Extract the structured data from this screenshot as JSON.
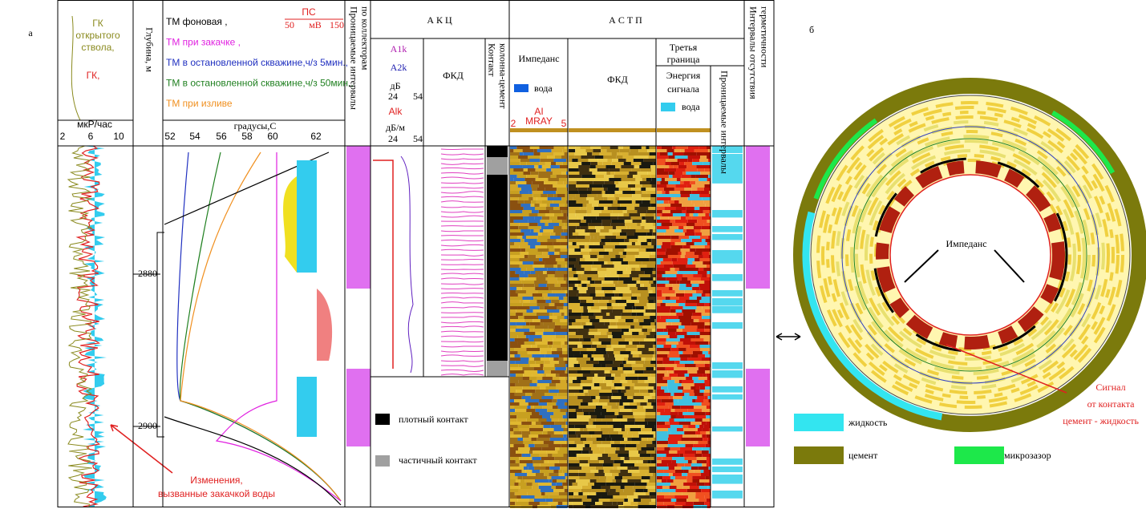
{
  "panel_labels": [
    "а",
    "б"
  ],
  "gk": {
    "title_lines": [
      "ГК",
      "открытого",
      "ствола,"
    ],
    "gk_label": "ГК,",
    "unit": "мкР/час",
    "ticks": [
      "2",
      "6",
      "10"
    ]
  },
  "depth": {
    "title": "Глубина, м",
    "marks": [
      "2880",
      "2900"
    ]
  },
  "thermo": {
    "legend": [
      {
        "label": "ТМ фоновая ,",
        "color": "#000000"
      },
      {
        "label": "ТМ при закачке ,",
        "color": "#e020e0"
      },
      {
        "label": "ТМ в остановленной скважине,ч/з 5мин.,",
        "color": "#2030c0"
      },
      {
        "label": "ТМ в остановленной скважине,ч/з 50мин.,",
        "color": "#208020"
      },
      {
        "label": "ТМ при изливе",
        "color": "#f09020"
      }
    ],
    "ps": {
      "title": "ПС",
      "min": "50",
      "unit": "мВ",
      "max": "150"
    },
    "axis_title": "градусы,С",
    "ticks": [
      "52",
      "54",
      "56",
      "58",
      "60",
      "62"
    ]
  },
  "perm_header_lines": [
    "Проницаемые интервалы",
    "по коллекторам"
  ],
  "akc": {
    "title": "А К Ц",
    "a1k": "A1k",
    "a2k": "A2k",
    "db": "дБ",
    "scale1": [
      "24",
      "54"
    ],
    "alk": "Alk",
    "dbm": "дБ/м",
    "scale2": [
      "24",
      "54"
    ],
    "fkd": "ФКД",
    "contact_lines": [
      "Контакт",
      "колонна-цемент"
    ],
    "legend": [
      {
        "label": "плотный контакт",
        "color": "#000000"
      },
      {
        "label": "частичный контакт",
        "color": "#a0a0a0"
      }
    ]
  },
  "astp": {
    "title": "А С Т П",
    "impedance": "Импеданс",
    "water": "вода",
    "ai_lines": [
      "AI",
      "MRAY"
    ],
    "ai_scale": [
      "2",
      "5"
    ],
    "fkd": "ФКД",
    "third_lines": [
      "Третья",
      "граница"
    ],
    "energy_lines": [
      "Энергия",
      "сигнала"
    ],
    "water2": "вода",
    "perm": "Проницаемые интервалы"
  },
  "hermetic_lines": [
    "Интервалы отсутствия",
    "герметичности"
  ],
  "annotation_lines": [
    "Изменения,",
    "вызванные закачкой воды"
  ],
  "right": {
    "impedance": "Импеданс",
    "signal_lines": [
      "Сигнал",
      "от контакта",
      "цемент - жидкость"
    ],
    "legend": [
      {
        "label": "жидкость",
        "color": "#33e5f0"
      },
      {
        "label": "цемент",
        "color": "#7b7a0c"
      },
      {
        "label": "микрозазор",
        "color": "#1de84a"
      }
    ]
  }
}
